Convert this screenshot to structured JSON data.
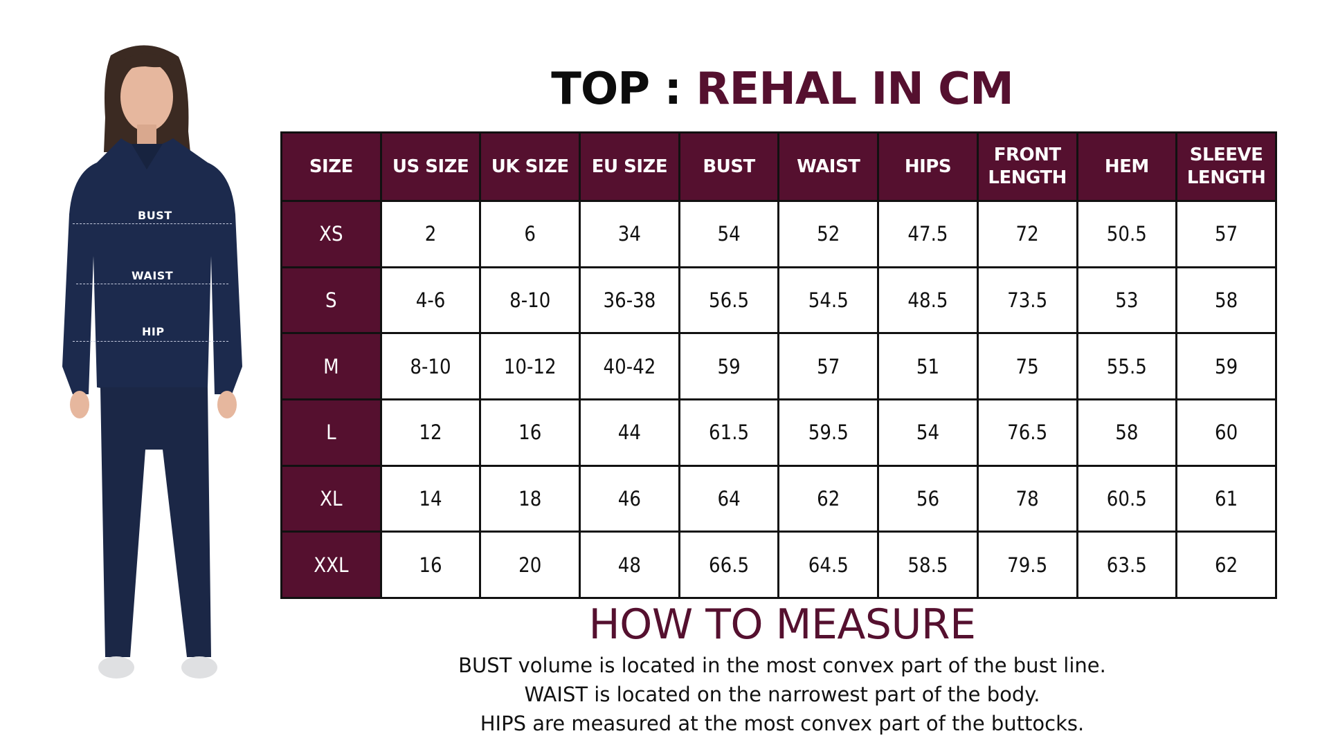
{
  "title": {
    "prefix": "TOP :",
    "accent": "REHAL IN CM"
  },
  "figure": {
    "labels": {
      "bust": "BUST",
      "waist": "WAIST",
      "hip": "HIP"
    }
  },
  "table": {
    "headers": [
      "SIZE",
      "US SIZE",
      "UK SIZE",
      "EU SIZE",
      "BUST",
      "WAIST",
      "HIPS",
      "FRONT LENGTH",
      "HEM",
      "SLEEVE LENGTH"
    ],
    "header_lines": [
      [
        "SIZE"
      ],
      [
        "US SIZE"
      ],
      [
        "UK SIZE"
      ],
      [
        "EU SIZE"
      ],
      [
        "BUST"
      ],
      [
        "WAIST"
      ],
      [
        "HIPS"
      ],
      [
        "FRONT",
        "LENGTH"
      ],
      [
        "HEM"
      ],
      [
        "SLEEVE",
        "LENGTH"
      ]
    ],
    "rows": [
      [
        "XS",
        "2",
        "6",
        "34",
        "54",
        "52",
        "47.5",
        "72",
        "50.5",
        "57"
      ],
      [
        "S",
        "4-6",
        "8-10",
        "36-38",
        "56.5",
        "54.5",
        "48.5",
        "73.5",
        "53",
        "58"
      ],
      [
        "M",
        "8-10",
        "10-12",
        "40-42",
        "59",
        "57",
        "51",
        "75",
        "55.5",
        "59"
      ],
      [
        "L",
        "12",
        "16",
        "44",
        "61.5",
        "59.5",
        "54",
        "76.5",
        "58",
        "60"
      ],
      [
        "XL",
        "14",
        "18",
        "46",
        "64",
        "62",
        "56",
        "78",
        "60.5",
        "61"
      ],
      [
        "XXL",
        "16",
        "20",
        "48",
        "66.5",
        "64.5",
        "58.5",
        "79.5",
        "63.5",
        "62"
      ]
    ]
  },
  "how_to_measure": {
    "title": "HOW TO MEASURE",
    "lines": [
      "BUST volume is located in the most convex part of the bust line.",
      "WAIST is located on the narrowest part of the body.",
      "HIPS are measured at the most convex part of the buttocks."
    ]
  },
  "colors": {
    "accent": "#55102f",
    "garment": "#1c2a4d",
    "text": "#111111"
  }
}
